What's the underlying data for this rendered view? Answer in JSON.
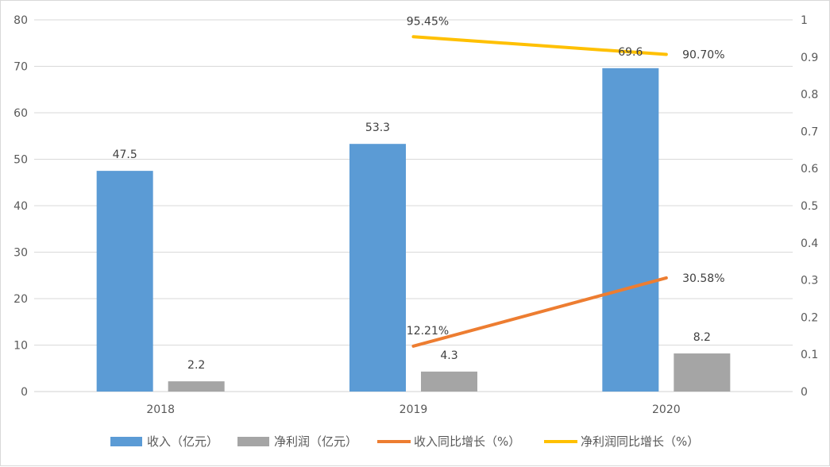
{
  "chart_data": {
    "type": "bar",
    "categories": [
      "2018",
      "2019",
      "2020"
    ],
    "series": [
      {
        "name": "收入（亿元）",
        "kind": "bar",
        "axis": "left",
        "color": "#5b9bd5",
        "values": [
          47.5,
          53.3,
          69.6
        ],
        "labels": [
          "47.5",
          "53.3",
          "69.6"
        ]
      },
      {
        "name": "净利润（亿元）",
        "kind": "bar",
        "axis": "left",
        "color": "#a5a5a5",
        "values": [
          2.2,
          4.3,
          8.2
        ],
        "labels": [
          "2.2",
          "4.3",
          "8.2"
        ]
      },
      {
        "name": "收入同比增长（%）",
        "kind": "line",
        "axis": "right",
        "color": "#ed7d31",
        "values": [
          null,
          0.1221,
          0.3058
        ],
        "labels": [
          null,
          "12.21%",
          "30.58%"
        ]
      },
      {
        "name": "净利润同比增长（%）",
        "kind": "line",
        "axis": "right",
        "color": "#ffc000",
        "values": [
          null,
          0.9545,
          0.907
        ],
        "labels": [
          null,
          "95.45%",
          "90.70%"
        ]
      }
    ],
    "y_left": {
      "min": 0,
      "max": 80,
      "ticks": [
        "0",
        "10",
        "20",
        "30",
        "40",
        "50",
        "60",
        "70",
        "80"
      ]
    },
    "y_right": {
      "min": 0,
      "max": 1,
      "ticks": [
        "0",
        "0.1",
        "0.2",
        "0.3",
        "0.4",
        "0.5",
        "0.6",
        "0.7",
        "0.8",
        "0.9",
        "1"
      ]
    },
    "grid": true,
    "legend_position": "bottom"
  }
}
